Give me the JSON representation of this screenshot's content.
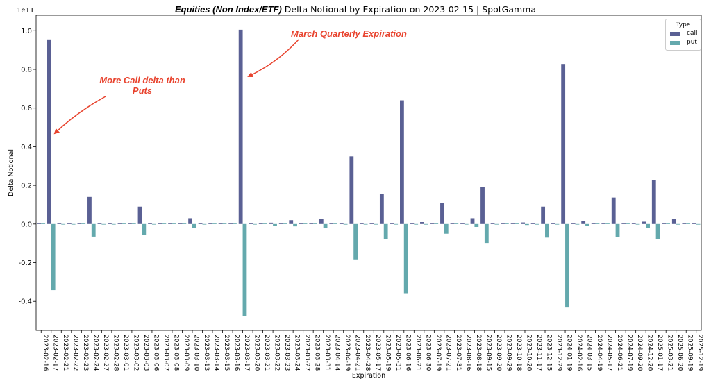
{
  "title": {
    "bold": "Equities (Non Index/ETF)",
    "rest": " Delta Notional by Expiration on 2023-02-15 | SpotGamma"
  },
  "annotations": {
    "call_delta": [
      "More Call delta than",
      "Puts"
    ],
    "march": "March Quarterly Expiration"
  },
  "colors": {
    "call": "#5a6094",
    "put": "#64a9ad",
    "annotation": "#e8432e"
  },
  "chart_data": {
    "type": "bar",
    "title": "Equities (Non Index/ETF) Delta Notional by Expiration on 2023-02-15 | SpotGamma",
    "xlabel": "Expiration",
    "ylabel": "Delta Notional",
    "y_multiplier": "1e11",
    "ylim": [
      -0.55,
      1.08
    ],
    "yticks": [
      -0.4,
      -0.2,
      0.0,
      0.2,
      0.4,
      0.6,
      0.8,
      1.0
    ],
    "legend": {
      "title": "Type",
      "placement": "top-right"
    },
    "grid": false,
    "categories": [
      "2023-02-16",
      "2023-02-17",
      "2023-02-21",
      "2023-02-22",
      "2023-02-23",
      "2023-02-24",
      "2023-02-27",
      "2023-02-28",
      "2023-03-01",
      "2023-03-02",
      "2023-03-03",
      "2023-03-06",
      "2023-03-07",
      "2023-03-08",
      "2023-03-09",
      "2023-03-10",
      "2023-03-13",
      "2023-03-14",
      "2023-03-15",
      "2023-03-16",
      "2023-03-17",
      "2023-03-20",
      "2023-03-21",
      "2023-03-22",
      "2023-03-23",
      "2023-03-24",
      "2023-03-27",
      "2023-03-28",
      "2023-03-31",
      "2023-04-14",
      "2023-04-19",
      "2023-04-21",
      "2023-04-28",
      "2023-05-17",
      "2023-05-19",
      "2023-05-31",
      "2023-06-16",
      "2023-06-21",
      "2023-06-30",
      "2023-07-19",
      "2023-07-21",
      "2023-07-31",
      "2023-08-16",
      "2023-08-18",
      "2023-09-15",
      "2023-09-20",
      "2023-09-29",
      "2023-10-18",
      "2023-10-20",
      "2023-11-17",
      "2023-12-15",
      "2023-12-29",
      "2024-01-19",
      "2024-02-16",
      "2024-03-15",
      "2024-04-19",
      "2024-05-17",
      "2024-06-21",
      "2024-07-19",
      "2024-09-20",
      "2024-12-20",
      "2025-01-17",
      "2025-03-21",
      "2025-06-20",
      "2025-09-19",
      "2025-12-19"
    ],
    "series": [
      {
        "name": "call",
        "values": [
          0.0,
          0.955,
          0.002,
          0.0,
          0.0,
          0.14,
          0.0,
          0.004,
          0.0,
          0.0,
          0.09,
          0.0,
          0.0,
          0.0,
          0.0,
          0.03,
          0.0,
          0.0,
          0.0,
          0.0,
          1.005,
          0.0,
          0.0,
          0.007,
          0.0,
          0.02,
          0.0,
          0.0,
          0.028,
          0.0,
          0.005,
          0.35,
          0.0,
          0.003,
          0.155,
          0.0,
          0.64,
          0.005,
          0.01,
          0.0,
          0.11,
          0.0,
          0.0,
          0.03,
          0.19,
          0.003,
          0.0,
          0.0,
          0.008,
          0.003,
          0.09,
          0.003,
          0.828,
          0.0,
          0.015,
          0.0,
          0.0,
          0.137,
          0.0,
          0.006,
          0.012,
          0.228,
          0.0,
          0.028,
          0.0,
          0.006
        ]
      },
      {
        "name": "put",
        "values": [
          0.0,
          -0.342,
          -0.002,
          -0.001,
          0.0,
          -0.065,
          -0.002,
          -0.002,
          0.0,
          0.0,
          -0.058,
          -0.002,
          0.0,
          0.0,
          0.0,
          -0.022,
          -0.002,
          0.0,
          0.0,
          0.0,
          -0.475,
          -0.002,
          0.0,
          -0.01,
          0.0,
          -0.012,
          0.0,
          0.0,
          -0.022,
          0.0,
          -0.003,
          -0.183,
          -0.002,
          -0.002,
          -0.077,
          -0.002,
          -0.358,
          -0.003,
          -0.003,
          0.0,
          -0.05,
          0.0,
          -0.001,
          -0.015,
          -0.098,
          -0.002,
          0.0,
          0.0,
          -0.005,
          -0.003,
          -0.07,
          -0.002,
          -0.432,
          -0.002,
          -0.008,
          0.0,
          0.0,
          -0.067,
          0.0,
          -0.002,
          -0.02,
          -0.077,
          0.0,
          -0.003,
          0.0,
          -0.003
        ]
      }
    ]
  }
}
